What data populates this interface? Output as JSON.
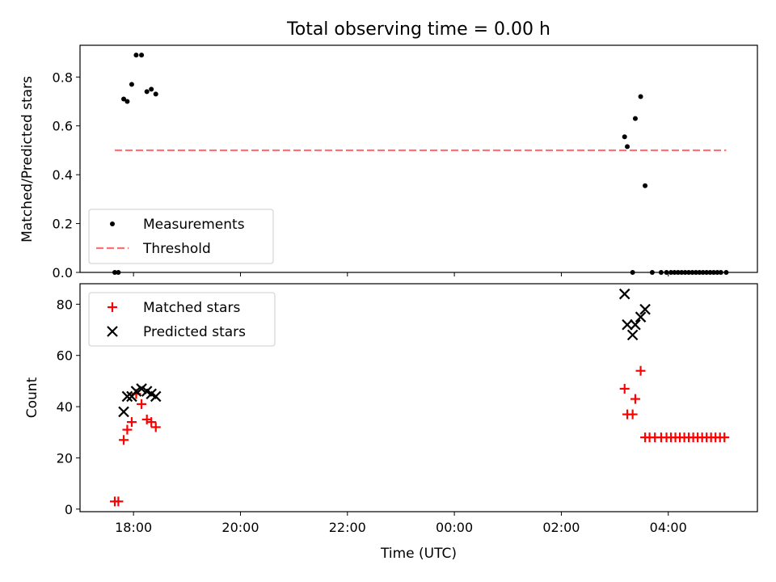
{
  "chart_data": [
    {
      "type": "scatter",
      "title": "Total observing time = 0.00 h",
      "ylabel": "Matched/Predicted stars",
      "xlabel": "",
      "ylim": [
        0,
        0.93
      ],
      "yticks": [
        "0.0",
        "0.2",
        "0.4",
        "0.6",
        "0.8"
      ],
      "legend": {
        "placement": "lower-left"
      },
      "series": [
        {
          "name": "Measurements",
          "color": "#000000",
          "marker": "dot",
          "x": [
            "17:39",
            "17:43",
            "17:49",
            "17:53",
            "17:58",
            "18:03",
            "18:09",
            "18:15",
            "18:20",
            "18:25",
            "03:11",
            "03:14",
            "03:20",
            "03:23",
            "03:29",
            "03:34",
            "03:42",
            "03:52",
            "03:58",
            "04:03",
            "04:07",
            "04:11",
            "04:15",
            "04:19",
            "04:23",
            "04:27",
            "04:31",
            "04:35",
            "04:39",
            "04:43",
            "04:47",
            "04:51",
            "04:55",
            "04:59",
            "05:05"
          ],
          "y": [
            0,
            0,
            0.71,
            0.7,
            0.77,
            0.89,
            0.89,
            0.74,
            0.75,
            0.73,
            0.555,
            0.515,
            0,
            0.63,
            0.72,
            0.355,
            0,
            0,
            0,
            0,
            0,
            0,
            0,
            0,
            0,
            0,
            0,
            0,
            0,
            0,
            0,
            0,
            0,
            0,
            0
          ]
        },
        {
          "name": "Threshold",
          "color": "#ff7070",
          "style": "dashed",
          "x": [
            "17:39",
            "05:05"
          ],
          "y": [
            0.5,
            0.5
          ]
        }
      ]
    },
    {
      "type": "scatter",
      "title": "",
      "ylabel": "Count",
      "xlabel": "Time (UTC)",
      "ylim": [
        -1,
        88
      ],
      "yticks": [
        "0",
        "20",
        "40",
        "60",
        "80"
      ],
      "xticks": [
        "18:00",
        "20:00",
        "22:00",
        "00:00",
        "02:00",
        "04:00"
      ],
      "xrange": [
        "17:00",
        "05:40"
      ],
      "legend": {
        "placement": "upper-left"
      },
      "series": [
        {
          "name": "Matched stars",
          "color": "#ff0000",
          "marker": "plus",
          "x": [
            "17:39",
            "17:43",
            "17:49",
            "17:53",
            "17:58",
            "18:03",
            "18:09",
            "18:15",
            "18:20",
            "18:25",
            "03:11",
            "03:14",
            "03:20",
            "03:23",
            "03:29",
            "03:34",
            "03:39",
            "03:45",
            "03:52",
            "03:58",
            "04:03",
            "04:08",
            "04:13",
            "04:18",
            "04:23",
            "04:28",
            "04:33",
            "04:38",
            "04:43",
            "04:48",
            "04:53",
            "04:58",
            "05:03"
          ],
          "y": [
            3,
            3,
            27,
            31,
            34,
            45,
            41,
            35,
            34,
            32,
            47,
            37,
            37,
            43,
            54,
            28,
            28,
            28,
            28,
            28,
            28,
            28,
            28,
            28,
            28,
            28,
            28,
            28,
            28,
            28,
            28,
            28,
            28
          ]
        },
        {
          "name": "Predicted stars",
          "color": "#000000",
          "marker": "x",
          "x": [
            "17:49",
            "17:53",
            "17:58",
            "18:03",
            "18:09",
            "18:15",
            "18:20",
            "18:25",
            "03:11",
            "03:14",
            "03:20",
            "03:23",
            "03:29",
            "03:34"
          ],
          "y": [
            38,
            44,
            44,
            46,
            47,
            46,
            45,
            44,
            84,
            72,
            68,
            72,
            75,
            78
          ]
        }
      ]
    }
  ]
}
